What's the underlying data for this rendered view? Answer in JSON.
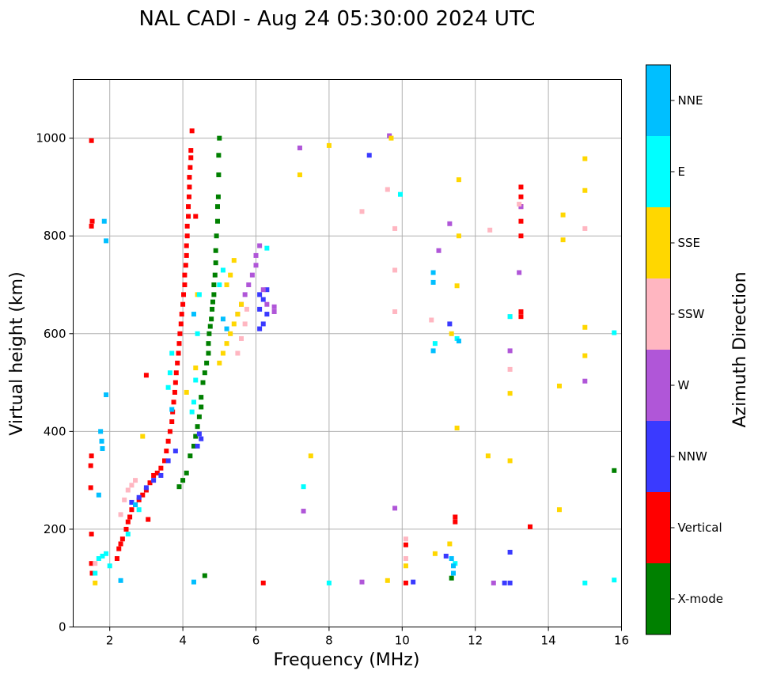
{
  "chart_data": {
    "type": "scatter",
    "title": "NAL CADI - Aug 24 05:30:00 2024 UTC",
    "xlabel": "Frequency (MHz)",
    "ylabel": "Virtual height (km)",
    "xlim": [
      1.0,
      16.0
    ],
    "ylim": [
      0,
      1120
    ],
    "xticks": [
      2,
      4,
      6,
      8,
      10,
      12,
      14,
      16
    ],
    "xtick_labels": [
      "2",
      "4",
      "6",
      "8",
      "10",
      "12",
      "14",
      "16"
    ],
    "yticks": [
      0,
      200,
      400,
      600,
      800,
      1000
    ],
    "ytick_labels": [
      "0",
      "200",
      "400",
      "600",
      "800",
      "1000"
    ],
    "grid": true,
    "colorbar": {
      "label": "Azimuth Direction",
      "categories": [
        "X-mode",
        "Vertical",
        "NNW",
        "W",
        "SSW",
        "SSE",
        "E",
        "NNE"
      ],
      "colors": [
        "#008000",
        "#ff0000",
        "#3a3aff",
        "#b056d8",
        "#ffb6c1",
        "#ffd700",
        "#00ffff",
        "#00bfff"
      ]
    },
    "series": [
      {
        "name": "X-mode",
        "points": [
          [
            3.9,
            287
          ],
          [
            4.0,
            300
          ],
          [
            4.1,
            315
          ],
          [
            4.2,
            350
          ],
          [
            4.3,
            370
          ],
          [
            4.35,
            390
          ],
          [
            4.4,
            410
          ],
          [
            4.45,
            430
          ],
          [
            4.5,
            450
          ],
          [
            4.5,
            470
          ],
          [
            4.55,
            500
          ],
          [
            4.6,
            520
          ],
          [
            4.65,
            540
          ],
          [
            4.7,
            560
          ],
          [
            4.7,
            580
          ],
          [
            4.72,
            600
          ],
          [
            4.75,
            615
          ],
          [
            4.78,
            630
          ],
          [
            4.8,
            650
          ],
          [
            4.82,
            665
          ],
          [
            4.85,
            680
          ],
          [
            4.85,
            700
          ],
          [
            4.88,
            720
          ],
          [
            4.9,
            745
          ],
          [
            4.9,
            770
          ],
          [
            4.92,
            800
          ],
          [
            4.95,
            830
          ],
          [
            4.95,
            860
          ],
          [
            4.97,
            880
          ],
          [
            4.98,
            925
          ],
          [
            4.98,
            965
          ],
          [
            5.0,
            1000
          ],
          [
            4.6,
            105
          ],
          [
            11.35,
            100
          ],
          [
            15.8,
            320
          ]
        ]
      },
      {
        "name": "Vertical",
        "points": [
          [
            1.5,
            130
          ],
          [
            1.52,
            110
          ],
          [
            1.5,
            190
          ],
          [
            1.48,
            285
          ],
          [
            1.48,
            330
          ],
          [
            1.5,
            350
          ],
          [
            1.5,
            820
          ],
          [
            1.52,
            830
          ],
          [
            1.5,
            995
          ],
          [
            2.2,
            140
          ],
          [
            2.25,
            160
          ],
          [
            2.3,
            170
          ],
          [
            2.35,
            180
          ],
          [
            2.45,
            200
          ],
          [
            2.5,
            215
          ],
          [
            2.55,
            225
          ],
          [
            2.6,
            240
          ],
          [
            2.7,
            250
          ],
          [
            2.8,
            260
          ],
          [
            2.9,
            270
          ],
          [
            3.0,
            280
          ],
          [
            3.1,
            295
          ],
          [
            3.2,
            310
          ],
          [
            3.3,
            315
          ],
          [
            3.4,
            325
          ],
          [
            3.5,
            340
          ],
          [
            3.55,
            360
          ],
          [
            3.6,
            380
          ],
          [
            3.65,
            400
          ],
          [
            3.7,
            420
          ],
          [
            3.72,
            440
          ],
          [
            3.75,
            460
          ],
          [
            3.78,
            480
          ],
          [
            3.8,
            500
          ],
          [
            3.82,
            520
          ],
          [
            3.85,
            540
          ],
          [
            3.88,
            560
          ],
          [
            3.9,
            580
          ],
          [
            3.92,
            600
          ],
          [
            3.95,
            620
          ],
          [
            3.97,
            640
          ],
          [
            4.0,
            660
          ],
          [
            4.02,
            680
          ],
          [
            4.05,
            700
          ],
          [
            4.05,
            720
          ],
          [
            4.08,
            740
          ],
          [
            4.1,
            760
          ],
          [
            4.1,
            780
          ],
          [
            4.12,
            800
          ],
          [
            4.12,
            820
          ],
          [
            4.15,
            840
          ],
          [
            4.15,
            860
          ],
          [
            4.17,
            880
          ],
          [
            4.18,
            900
          ],
          [
            4.18,
            920
          ],
          [
            4.2,
            940
          ],
          [
            4.22,
            960
          ],
          [
            4.22,
            975
          ],
          [
            4.25,
            1015
          ],
          [
            4.35,
            840
          ],
          [
            3.0,
            515
          ],
          [
            3.05,
            220
          ],
          [
            6.2,
            90
          ],
          [
            10.1,
            90
          ],
          [
            10.1,
            168
          ],
          [
            11.45,
            215
          ],
          [
            11.45,
            225
          ],
          [
            13.25,
            635
          ],
          [
            13.25,
            645
          ],
          [
            13.25,
            800
          ],
          [
            13.25,
            830
          ],
          [
            13.25,
            860
          ],
          [
            13.25,
            880
          ],
          [
            13.25,
            900
          ],
          [
            13.5,
            205
          ]
        ]
      },
      {
        "name": "NNW",
        "points": [
          [
            2.6,
            255
          ],
          [
            2.8,
            265
          ],
          [
            3.0,
            285
          ],
          [
            3.2,
            300
          ],
          [
            3.4,
            310
          ],
          [
            3.6,
            340
          ],
          [
            3.8,
            360
          ],
          [
            4.4,
            370
          ],
          [
            4.5,
            385
          ],
          [
            4.45,
            395
          ],
          [
            6.1,
            610
          ],
          [
            6.2,
            620
          ],
          [
            6.3,
            640
          ],
          [
            6.1,
            650
          ],
          [
            6.2,
            670
          ],
          [
            6.1,
            680
          ],
          [
            6.3,
            690
          ],
          [
            9.1,
            965
          ],
          [
            10.3,
            92
          ],
          [
            11.3,
            620
          ],
          [
            11.2,
            145
          ],
          [
            12.8,
            90
          ],
          [
            12.95,
            90
          ],
          [
            12.95,
            153
          ]
        ]
      },
      {
        "name": "W",
        "points": [
          [
            5.5,
            640
          ],
          [
            5.6,
            660
          ],
          [
            5.7,
            680
          ],
          [
            5.8,
            700
          ],
          [
            5.9,
            720
          ],
          [
            6.0,
            740
          ],
          [
            6.0,
            760
          ],
          [
            6.1,
            780
          ],
          [
            6.2,
            690
          ],
          [
            6.3,
            660
          ],
          [
            6.5,
            645
          ],
          [
            6.5,
            655
          ],
          [
            7.2,
            980
          ],
          [
            7.3,
            237
          ],
          [
            8.9,
            92
          ],
          [
            9.8,
            243
          ],
          [
            9.65,
            1005
          ],
          [
            11.0,
            770
          ],
          [
            11.3,
            825
          ],
          [
            12.5,
            90
          ],
          [
            12.95,
            565
          ],
          [
            13.2,
            725
          ],
          [
            13.25,
            860
          ],
          [
            15.0,
            503
          ]
        ]
      },
      {
        "name": "SSW",
        "points": [
          [
            1.6,
            130
          ],
          [
            2.3,
            230
          ],
          [
            2.4,
            260
          ],
          [
            2.5,
            280
          ],
          [
            2.6,
            290
          ],
          [
            2.7,
            300
          ],
          [
            5.5,
            560
          ],
          [
            5.6,
            590
          ],
          [
            5.7,
            620
          ],
          [
            5.75,
            650
          ],
          [
            8.9,
            850
          ],
          [
            9.6,
            895
          ],
          [
            9.8,
            645
          ],
          [
            9.8,
            730
          ],
          [
            9.8,
            815
          ],
          [
            10.1,
            180
          ],
          [
            10.1,
            140
          ],
          [
            10.8,
            628
          ],
          [
            12.4,
            812
          ],
          [
            12.95,
            527
          ],
          [
            12.95,
            635
          ],
          [
            13.2,
            865
          ],
          [
            15.0,
            815
          ]
        ]
      },
      {
        "name": "SSE",
        "points": [
          [
            1.6,
            90
          ],
          [
            2.9,
            390
          ],
          [
            4.1,
            480
          ],
          [
            4.35,
            530
          ],
          [
            4.4,
            680
          ],
          [
            5.0,
            540
          ],
          [
            5.1,
            560
          ],
          [
            5.2,
            580
          ],
          [
            5.3,
            600
          ],
          [
            5.4,
            620
          ],
          [
            5.5,
            640
          ],
          [
            5.6,
            660
          ],
          [
            5.2,
            700
          ],
          [
            5.3,
            720
          ],
          [
            5.4,
            750
          ],
          [
            7.2,
            925
          ],
          [
            7.5,
            350
          ],
          [
            8.0,
            985
          ],
          [
            9.6,
            95
          ],
          [
            9.7,
            1000
          ],
          [
            10.1,
            125
          ],
          [
            10.9,
            150
          ],
          [
            11.3,
            170
          ],
          [
            11.35,
            600
          ],
          [
            11.5,
            407
          ],
          [
            11.5,
            698
          ],
          [
            11.55,
            800
          ],
          [
            11.55,
            915
          ],
          [
            12.35,
            350
          ],
          [
            12.95,
            340
          ],
          [
            12.95,
            478
          ],
          [
            14.3,
            240
          ],
          [
            14.3,
            493
          ],
          [
            14.4,
            792
          ],
          [
            14.4,
            843
          ],
          [
            15.0,
            555
          ],
          [
            15.0,
            613
          ],
          [
            15.0,
            893
          ],
          [
            15.0,
            958
          ]
        ]
      },
      {
        "name": "E",
        "points": [
          [
            1.6,
            110
          ],
          [
            1.7,
            140
          ],
          [
            1.8,
            145
          ],
          [
            1.9,
            150
          ],
          [
            2.0,
            125
          ],
          [
            2.5,
            190
          ],
          [
            2.8,
            240
          ],
          [
            3.6,
            490
          ],
          [
            3.65,
            520
          ],
          [
            3.7,
            560
          ],
          [
            4.25,
            440
          ],
          [
            4.3,
            460
          ],
          [
            4.35,
            505
          ],
          [
            4.4,
            600
          ],
          [
            4.45,
            680
          ],
          [
            5.0,
            700
          ],
          [
            5.1,
            730
          ],
          [
            6.3,
            775
          ],
          [
            7.3,
            287
          ],
          [
            8.0,
            90
          ],
          [
            9.95,
            885
          ],
          [
            10.9,
            580
          ],
          [
            11.5,
            590
          ],
          [
            11.45,
            130
          ],
          [
            12.95,
            635
          ],
          [
            15.0,
            90
          ],
          [
            15.8,
            96
          ],
          [
            15.8,
            602
          ]
        ]
      },
      {
        "name": "NNE",
        "points": [
          [
            1.75,
            400
          ],
          [
            1.78,
            380
          ],
          [
            1.8,
            365
          ],
          [
            1.7,
            270
          ],
          [
            1.9,
            475
          ],
          [
            1.9,
            790
          ],
          [
            1.85,
            830
          ],
          [
            2.3,
            95
          ],
          [
            2.7,
            250
          ],
          [
            3.7,
            445
          ],
          [
            4.3,
            92
          ],
          [
            4.3,
            640
          ],
          [
            5.1,
            630
          ],
          [
            5.2,
            610
          ],
          [
            10.85,
            705
          ],
          [
            10.85,
            725
          ],
          [
            10.85,
            565
          ],
          [
            11.35,
            140
          ],
          [
            11.4,
            125
          ],
          [
            11.4,
            110
          ],
          [
            11.55,
            585
          ]
        ]
      }
    ]
  }
}
